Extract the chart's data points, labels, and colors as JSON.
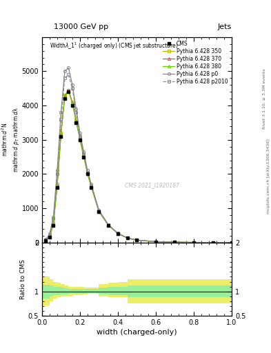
{
  "title_top": "13000 GeV pp",
  "title_right": "Jets",
  "plot_title": "Widthλ_1¹ (charged only) (CMS jet substructure)",
  "xlabel": "width (charged-only)",
  "ylabel_ratio": "Ratio to CMS",
  "xlim": [
    0,
    1
  ],
  "ylim_main": [
    0,
    6000
  ],
  "ylim_ratio": [
    0.5,
    2.0
  ],
  "watermark": "CMS 2021_I1920187",
  "x_data": [
    0.02,
    0.04,
    0.06,
    0.08,
    0.1,
    0.12,
    0.14,
    0.16,
    0.18,
    0.2,
    0.22,
    0.24,
    0.26,
    0.3,
    0.35,
    0.4,
    0.45,
    0.5,
    0.6,
    0.7,
    0.8,
    0.9,
    1.0
  ],
  "cms_data": [
    60,
    150,
    500,
    1600,
    3100,
    4200,
    4400,
    4000,
    3500,
    3000,
    2500,
    2000,
    1600,
    900,
    500,
    260,
    130,
    70,
    25,
    10,
    4,
    2,
    1
  ],
  "p350_data": [
    70,
    180,
    580,
    1700,
    3200,
    4300,
    4450,
    4100,
    3600,
    3050,
    2550,
    2050,
    1650,
    920,
    510,
    265,
    135,
    72,
    26,
    11,
    5,
    2,
    1
  ],
  "p370_data": [
    65,
    170,
    560,
    1680,
    3180,
    4280,
    4440,
    4080,
    3560,
    3020,
    2530,
    2020,
    1630,
    910,
    505,
    262,
    132,
    71,
    25,
    10,
    4,
    2,
    1
  ],
  "p380_data": [
    62,
    165,
    545,
    1660,
    3150,
    4260,
    4420,
    4060,
    3540,
    3000,
    2510,
    2010,
    1620,
    905,
    502,
    260,
    130,
    70,
    25,
    10,
    4,
    2,
    1
  ],
  "p0_data": [
    90,
    250,
    750,
    2100,
    3800,
    5000,
    5100,
    4600,
    3900,
    3200,
    2650,
    2100,
    1700,
    950,
    520,
    270,
    135,
    72,
    26,
    11,
    5,
    2,
    1
  ],
  "p2010_data": [
    80,
    220,
    700,
    2000,
    3600,
    4800,
    4900,
    4500,
    3800,
    3100,
    2600,
    2050,
    1660,
    930,
    515,
    268,
    133,
    71,
    26,
    10,
    5,
    2,
    1
  ],
  "ratio_x_edges": [
    0.0,
    0.04,
    0.06,
    0.08,
    0.1,
    0.12,
    0.14,
    0.16,
    0.18,
    0.2,
    0.22,
    0.24,
    0.26,
    0.3,
    0.35,
    0.4,
    0.45,
    0.5,
    0.6,
    0.7,
    0.8,
    0.9,
    1.0
  ],
  "ratio_yellow_low": [
    0.72,
    0.8,
    0.85,
    0.88,
    0.9,
    0.9,
    0.9,
    0.92,
    0.93,
    0.93,
    0.94,
    0.95,
    0.95,
    0.9,
    0.88,
    0.88,
    0.75,
    0.75,
    0.75,
    0.75,
    0.75,
    0.75
  ],
  "ratio_yellow_high": [
    1.3,
    1.25,
    1.2,
    1.18,
    1.15,
    1.12,
    1.1,
    1.1,
    1.1,
    1.1,
    1.08,
    1.08,
    1.08,
    1.15,
    1.18,
    1.2,
    1.25,
    1.25,
    1.25,
    1.25,
    1.25,
    1.25
  ],
  "ratio_green_low": [
    0.86,
    0.9,
    0.92,
    0.93,
    0.94,
    0.94,
    0.95,
    0.96,
    0.96,
    0.96,
    0.96,
    0.97,
    0.97,
    0.94,
    0.93,
    0.92,
    0.88,
    0.88,
    0.88,
    0.88,
    0.88,
    0.88
  ],
  "ratio_green_high": [
    1.14,
    1.12,
    1.1,
    1.09,
    1.08,
    1.07,
    1.06,
    1.06,
    1.06,
    1.06,
    1.05,
    1.05,
    1.05,
    1.08,
    1.09,
    1.1,
    1.12,
    1.12,
    1.12,
    1.12,
    1.12,
    1.12
  ],
  "color_cms": "#000000",
  "color_p350": "#bbbb00",
  "color_p370": "#ee4444",
  "color_p380": "#66cc00",
  "color_p0": "#888888",
  "color_p2010": "#888899",
  "color_yellow": "#eeee66",
  "color_green": "#99ee99",
  "yticks_main": [
    0,
    1000,
    2000,
    3000,
    4000,
    5000
  ],
  "ytick_labels_main": [
    "0",
    "1000",
    "2000",
    "3000",
    "4000",
    "5000"
  ],
  "legend_labels": [
    "CMS",
    "Pythia 6.428 350",
    "Pythia 6.428 370",
    "Pythia 6.428 380",
    "Pythia 6.428 p0",
    "Pythia 6.428 p2010"
  ]
}
